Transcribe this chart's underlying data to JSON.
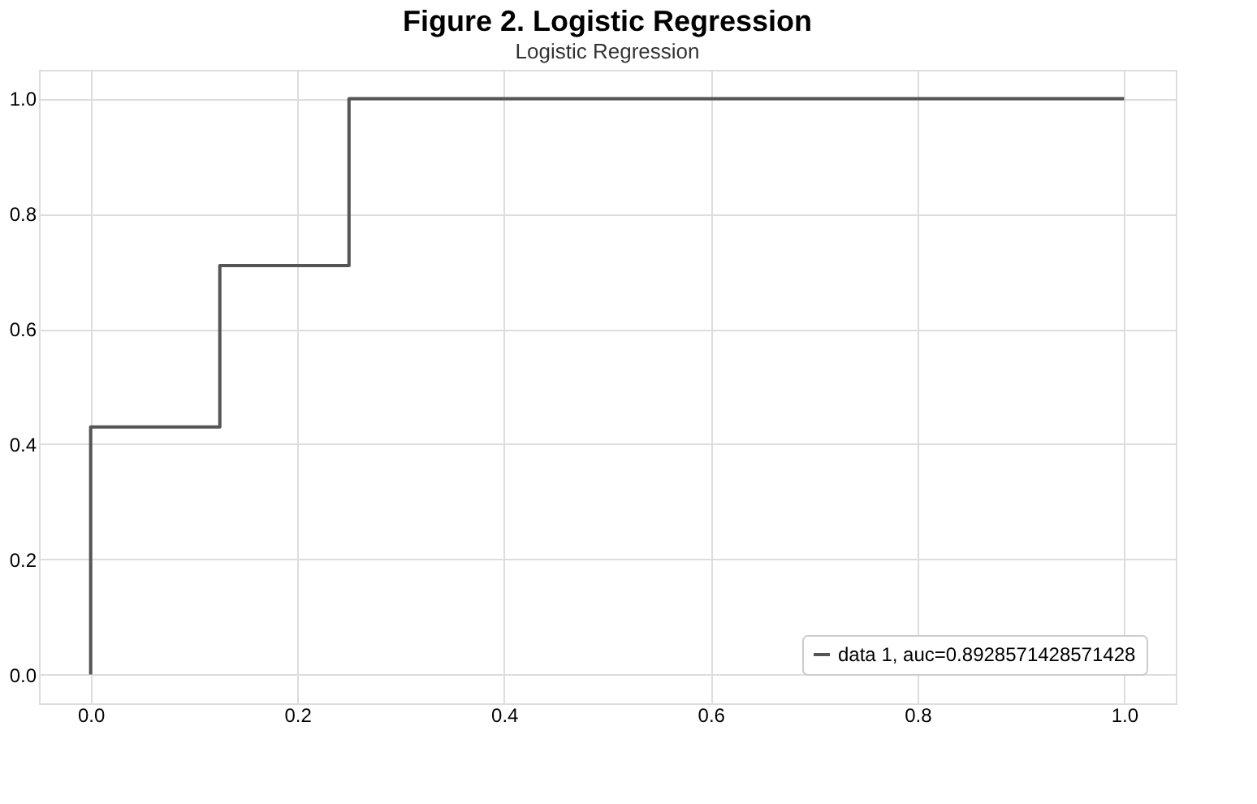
{
  "chart_data": {
    "type": "step",
    "title": "Figure 2. Logistic Regression",
    "subtitle": "Logistic Regression",
    "x": [
      0,
      0,
      0.125,
      0.25,
      1
    ],
    "series": [
      {
        "name": "data 1, auc=0.8928571428571428",
        "color": "#555555",
        "values": [
          0,
          0.43,
          0.71,
          1,
          1
        ]
      }
    ],
    "xlim": [
      -0.05,
      1.05
    ],
    "ylim": [
      -0.05,
      1.05
    ],
    "xticks": [
      {
        "value": 0,
        "label": "0.0"
      },
      {
        "value": 0.2,
        "label": "0.2"
      },
      {
        "value": 0.4,
        "label": "0.4"
      },
      {
        "value": 0.6,
        "label": "0.6"
      },
      {
        "value": 0.8,
        "label": "0.8"
      },
      {
        "value": 1,
        "label": "1.0"
      }
    ],
    "yticks": [
      {
        "value": 0,
        "label": "0.0"
      },
      {
        "value": 0.2,
        "label": "0.2"
      },
      {
        "value": 0.4,
        "label": "0.4"
      },
      {
        "value": 0.6,
        "label": "0.6"
      },
      {
        "value": 0.8,
        "label": "0.8"
      },
      {
        "value": 1,
        "label": "1.0"
      }
    ],
    "grid": true,
    "legend": "bottom right",
    "line_style": "solid",
    "marker": "none"
  }
}
